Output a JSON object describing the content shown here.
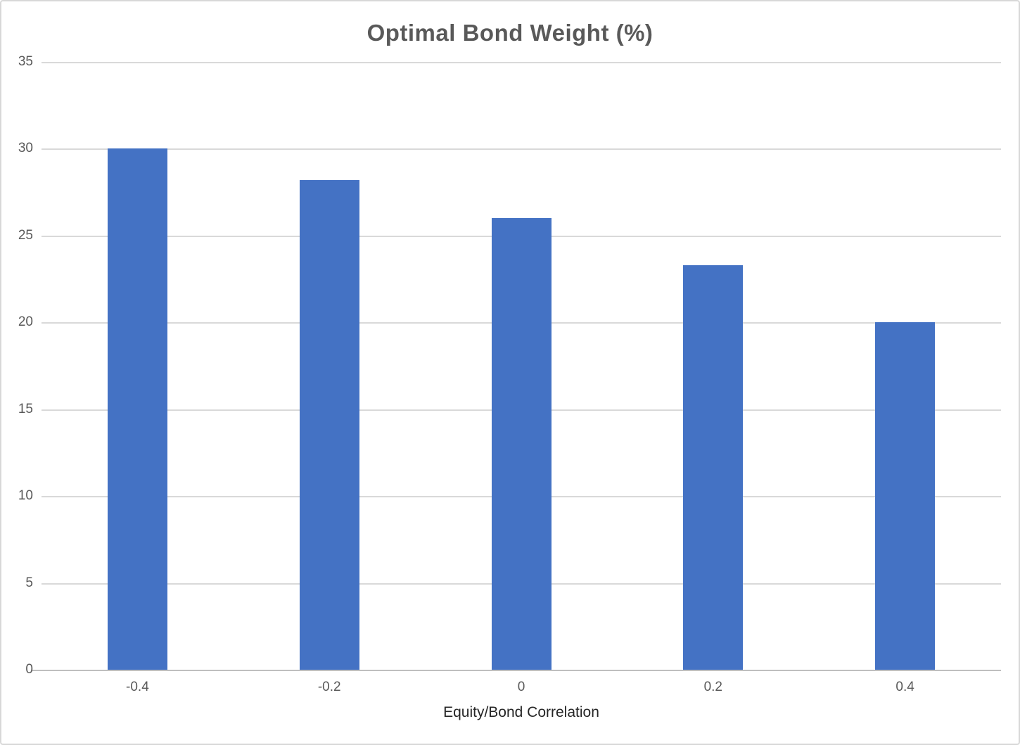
{
  "chart_data": {
    "type": "bar",
    "title": "Optimal Bond Weight (%)",
    "xlabel": "Equity/Bond Correlation",
    "ylabel": "",
    "categories": [
      "-0.4",
      "-0.2",
      "0",
      "0.2",
      "0.4"
    ],
    "values": [
      30,
      28.2,
      26,
      23.3,
      20
    ],
    "ylim": [
      0,
      35
    ],
    "yticks": [
      0,
      5,
      10,
      15,
      20,
      25,
      30,
      35
    ],
    "grid": "horizontal",
    "legend": "none",
    "colors": {
      "bar": "#4472c4",
      "gridline": "#d9d9d9",
      "axis_line": "#bfbfbf",
      "tick_label": "#595959",
      "title": "#595959",
      "xlabel_text": "#262626"
    }
  }
}
